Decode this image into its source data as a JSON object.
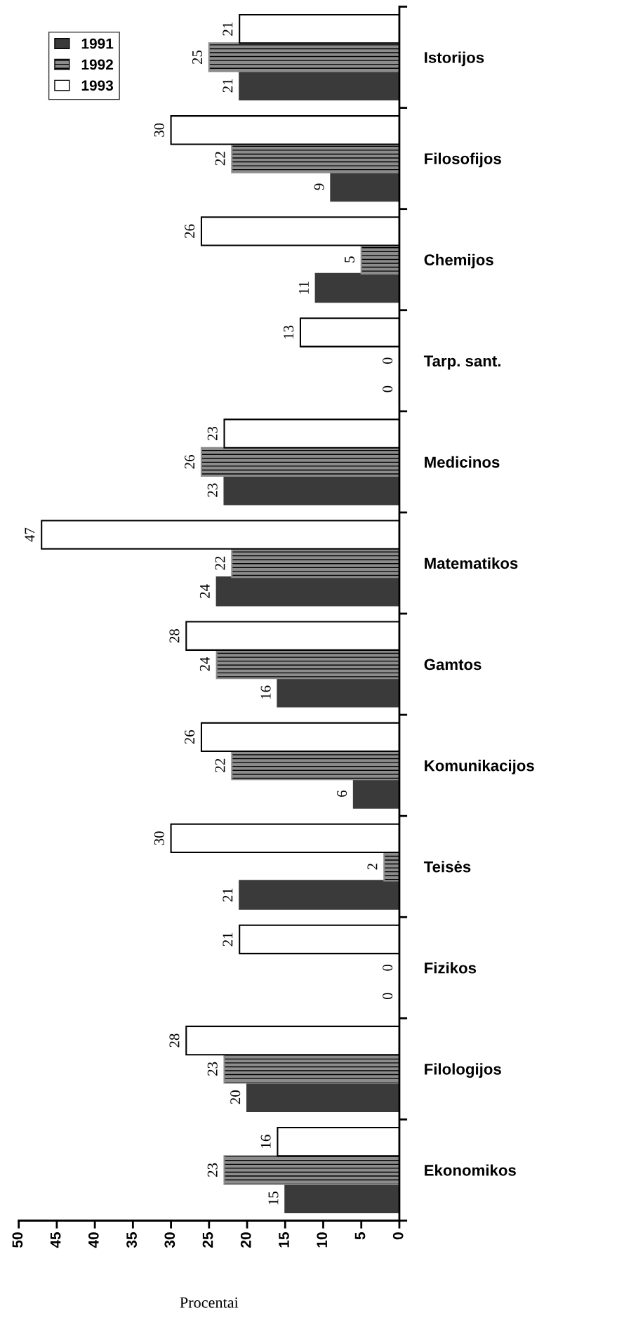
{
  "chart_data": {
    "type": "bar",
    "orientation": "horizontal",
    "xlabel": "Procentai",
    "categories": [
      "Istorijos",
      "Filosofijos",
      "Chemijos",
      "Tarp. sant.",
      "Medicinos",
      "Matematikos",
      "Gamtos",
      "Komunikacijos",
      "Teisės",
      "Fizikos",
      "Filologijos",
      "Ekonomikos"
    ],
    "series": [
      {
        "name": "1991",
        "color": "#3a3a3a",
        "values": [
          21,
          9,
          11,
          0,
          23,
          24,
          16,
          6,
          21,
          0,
          20,
          15
        ]
      },
      {
        "name": "1992",
        "color": "#8c8c8c",
        "values": [
          25,
          22,
          5,
          0,
          26,
          22,
          24,
          22,
          2,
          0,
          23,
          23
        ]
      },
      {
        "name": "1993",
        "color": "#ffffff",
        "values": [
          21,
          30,
          26,
          13,
          23,
          47,
          28,
          26,
          30,
          21,
          28,
          16
        ]
      }
    ],
    "xlim": [
      50,
      0
    ],
    "xticks": [
      0,
      5,
      10,
      15,
      20,
      25,
      30,
      35,
      40,
      45,
      50
    ],
    "data_labels": true,
    "legend": "top left",
    "grid": false
  }
}
